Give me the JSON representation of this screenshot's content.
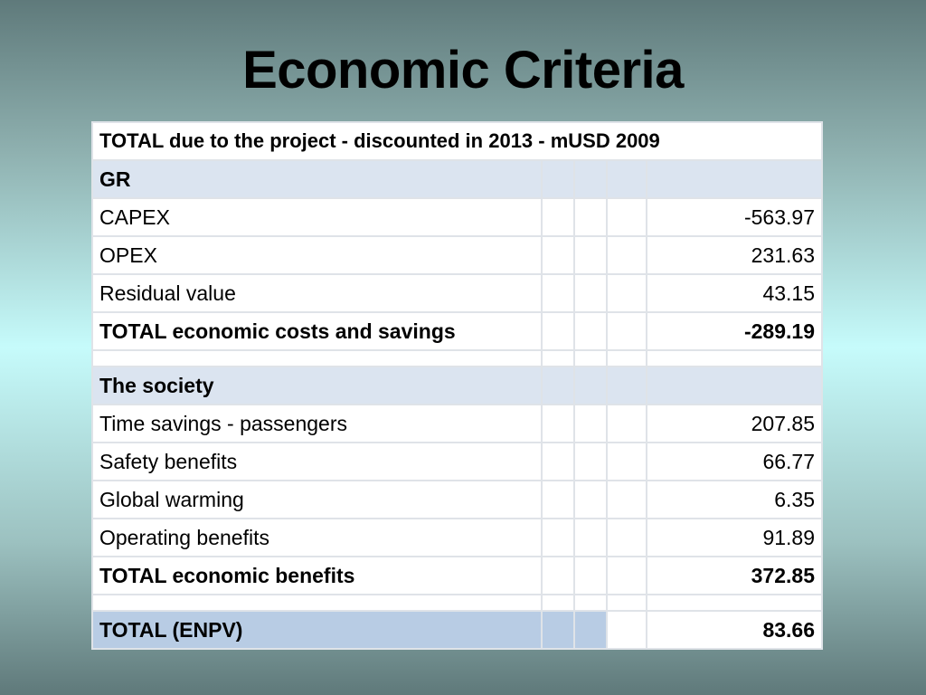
{
  "title": "Economic Criteria",
  "table": {
    "header": "TOTAL due to the project - discounted in 2013 - mUSD 2009",
    "sections": [
      {
        "name": "GR",
        "items": [
          {
            "label": "CAPEX",
            "value": "-563.97"
          },
          {
            "label": "OPEX",
            "value": "231.63"
          },
          {
            "label": "Residual value",
            "value": "43.15"
          }
        ],
        "total": {
          "label": "TOTAL economic costs and savings",
          "value": "-289.19"
        }
      },
      {
        "name": "The society",
        "items": [
          {
            "label": "Time savings - passengers",
            "value": "207.85"
          },
          {
            "label": "Safety benefits",
            "value": "66.77"
          },
          {
            "label": "Global warming",
            "value": "6.35"
          },
          {
            "label": "Operating benefits",
            "value": "91.89"
          }
        ],
        "total": {
          "label": "TOTAL economic benefits",
          "value": "372.85"
        }
      }
    ],
    "grand_total": {
      "label": "TOTAL (ENPV)",
      "value": "83.66"
    }
  }
}
